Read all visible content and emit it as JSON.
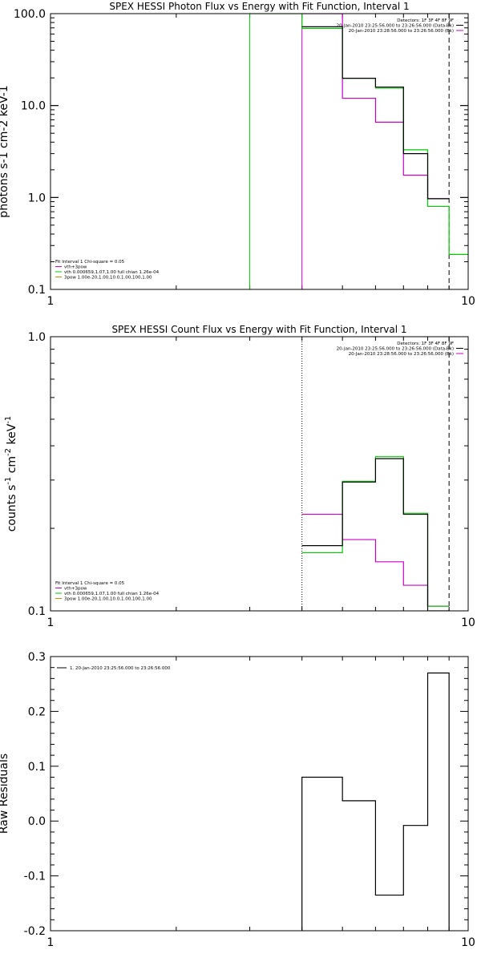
{
  "colors": {
    "data": "#000000",
    "fit": "#00cc00",
    "vth": "#cc00cc",
    "bk": "#cc00cc",
    "pow": "#cc8800",
    "line": "#000000",
    "bg": "#ffffff"
  },
  "chart_data": [
    {
      "type": "line",
      "title": "SPEX HESSI Photon Flux vs Energy with Fit Function, Interval 1",
      "ylabel": "photons s-1 cm-2 keV-1",
      "xlim": [
        1,
        10
      ],
      "ylim": [
        0.1,
        100
      ],
      "xscale": "log",
      "yscale": "log",
      "x_ticklabels": [
        "1",
        "10"
      ],
      "y_ticklabels": [
        "0.1",
        "1.0",
        "10.0",
        "100.0"
      ],
      "legend_topright": [
        "Detectors: 1F 3F 4F 8F 9F",
        "20-Jan-2010 23:25:56.000 to 23:26:56.000 (Data-Bk)",
        "20-Jan-2010 23:28:56.000 to 23:26:56.000 (Bk)"
      ],
      "legend_bottomleft": [
        "Fit Interval 1    Chi-square = 0.05",
        "vth+3pow",
        "vth 0.000659,1.07,1.00   full chian 1.26e-04",
        "3pow 1.00e-20,1.00,10.0,1.00,100,1.00"
      ],
      "fit_range": [
        4.0,
        9.0
      ],
      "markers": [
        {
          "x": 3.0,
          "color": "green"
        },
        {
          "x": 4.0,
          "color": "magenta"
        },
        {
          "x": 9.0,
          "color": "dashed"
        }
      ],
      "series": [
        {
          "key": "data",
          "edges": [
            4.0,
            5.0,
            6.0,
            7.0,
            8.0,
            9.0
          ],
          "values": [
            72.0,
            19.8,
            15.9,
            3.0,
            0.97
          ]
        },
        {
          "key": "fit",
          "edges": [
            3.0,
            4.0,
            5.0,
            6.0,
            7.0,
            8.0,
            9.0,
            10.0
          ],
          "values": [
            100.0,
            69.0,
            19.8,
            15.5,
            3.3,
            0.8,
            0.24
          ]
        },
        {
          "key": "bk",
          "edges": [
            4.0,
            5.0,
            6.0,
            7.0,
            8.0,
            9.0
          ],
          "values": [
            100.0,
            12.0,
            6.6,
            1.75,
            0.97
          ]
        }
      ]
    },
    {
      "type": "line",
      "title": "SPEX HESSI Count Flux vs Energy with Fit Function, Interval 1",
      "ylabel": "counts s-1 cm-2 keV-1",
      "xlim": [
        1,
        10
      ],
      "ylim": [
        0.1,
        1.0
      ],
      "xscale": "log",
      "yscale": "log",
      "x_ticklabels": [
        "1",
        "10"
      ],
      "y_ticklabels": [
        "0.1",
        "1.0"
      ],
      "legend_topright": [
        "Detectors: 1F 3F 4F 8F 9F",
        "20-Jan-2010 23:25:56.000 to 23:26:56.000 (Data-Bk)",
        "20-Jan-2010 23:28:56.000 to 23:26:56.000 (Bk)"
      ],
      "legend_bottomleft": [
        "Fit Interval 1    Chi-square = 0.05",
        "vth+3pow",
        "vth 0.000659,1.07,1.00   full chian 1.26e-04",
        "3pow 1.00e-20,1.00,10.0,1.00,100,1.00"
      ],
      "fit_range": [
        4.0,
        9.0
      ],
      "markers": [
        {
          "x": 4.0,
          "color": "dotted"
        },
        {
          "x": 9.0,
          "color": "dashed"
        }
      ],
      "series": [
        {
          "key": "data",
          "edges": [
            4.0,
            5.0,
            6.0,
            7.0,
            8.0,
            9.0
          ],
          "values": [
            0.173,
            0.295,
            0.359,
            0.225,
            0.1
          ]
        },
        {
          "key": "fit",
          "edges": [
            4.0,
            5.0,
            6.0,
            7.0,
            8.0,
            9.0
          ],
          "values": [
            0.163,
            0.297,
            0.365,
            0.227,
            0.104
          ]
        },
        {
          "key": "bk",
          "edges": [
            4.0,
            5.0,
            6.0,
            7.0,
            8.0,
            9.0
          ],
          "values": [
            0.225,
            0.182,
            0.151,
            0.124,
            0.104
          ]
        }
      ]
    },
    {
      "type": "line",
      "title": "",
      "ylabel": "Raw Residuals",
      "xlim": [
        1,
        10
      ],
      "ylim": [
        -0.2,
        0.3
      ],
      "xscale": "log",
      "yscale": "linear",
      "x_ticklabels": [
        "1",
        "10"
      ],
      "y_ticklabels": [
        "-0.2",
        "-0.1",
        "0.0",
        "0.1",
        "0.2",
        "0.3"
      ],
      "legend_topleft": [
        "1. 20-Jan-2010 23:25:56.000 to 23:26:56.000"
      ],
      "series": [
        {
          "key": "data",
          "edges": [
            4.0,
            5.0,
            6.0,
            7.0,
            8.0,
            9.0
          ],
          "values": [
            0.08,
            0.037,
            -0.135,
            -0.008,
            0.27
          ]
        }
      ]
    }
  ]
}
